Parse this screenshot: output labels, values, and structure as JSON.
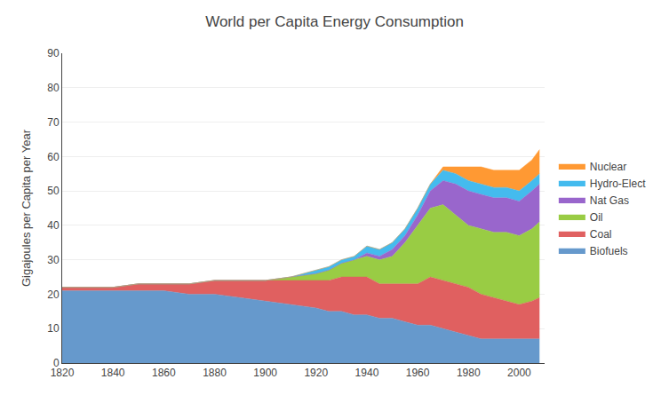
{
  "chart_data": {
    "type": "area",
    "stacked": true,
    "title": "World per Capita Energy Consumption",
    "ylabel": "Gigajoules per Capita per Year",
    "x": [
      1820,
      1830,
      1840,
      1850,
      1860,
      1870,
      1880,
      1890,
      1900,
      1910,
      1920,
      1925,
      1930,
      1935,
      1940,
      1945,
      1950,
      1955,
      1960,
      1965,
      1970,
      1975,
      1980,
      1985,
      1990,
      1995,
      2000,
      2005,
      2008
    ],
    "series": [
      {
        "name": "Biofuels",
        "color": "#6699CC",
        "values": [
          21,
          21,
          21,
          21,
          21,
          20,
          20,
          19,
          18,
          17,
          16,
          15,
          15,
          14,
          14,
          13,
          13,
          12,
          11,
          11,
          10,
          9,
          8,
          7,
          7,
          7,
          7,
          7,
          7
        ]
      },
      {
        "name": "Coal",
        "color": "#E06060",
        "values": [
          1,
          1,
          1,
          2,
          2,
          3,
          4,
          5,
          6,
          7,
          8,
          9,
          10,
          11,
          11,
          10,
          10,
          11,
          12,
          14,
          14,
          14,
          14,
          13,
          12,
          11,
          10,
          11,
          12
        ]
      },
      {
        "name": "Oil",
        "color": "#99CC44",
        "values": [
          0,
          0,
          0,
          0,
          0,
          0,
          0,
          0,
          0,
          1,
          2,
          3,
          4,
          5,
          6,
          7,
          8,
          12,
          17,
          20,
          22,
          20,
          18,
          19,
          19,
          20,
          20,
          21,
          22
        ]
      },
      {
        "name": "Nat Gas",
        "color": "#9966CC",
        "values": [
          0,
          0,
          0,
          0,
          0,
          0,
          0,
          0,
          0,
          0,
          0,
          0,
          0,
          0,
          1,
          1,
          2,
          2,
          3,
          5,
          7,
          9,
          10,
          10,
          10,
          10,
          10,
          11,
          11
        ]
      },
      {
        "name": "Hydro-Elect",
        "color": "#44BBEE",
        "values": [
          0,
          0,
          0,
          0,
          0,
          0,
          0,
          0,
          0,
          0,
          1,
          1,
          1,
          1,
          2,
          2,
          2,
          2,
          2,
          2,
          3,
          3,
          3,
          3,
          3,
          3,
          3,
          3,
          3
        ]
      },
      {
        "name": "Nuclear",
        "color": "#FF9933",
        "values": [
          0,
          0,
          0,
          0,
          0,
          0,
          0,
          0,
          0,
          0,
          0,
          0,
          0,
          0,
          0,
          0,
          0,
          0,
          0,
          0,
          1,
          2,
          4,
          5,
          5,
          5,
          6,
          6,
          7
        ]
      }
    ],
    "xlim": [
      1820,
      2010
    ],
    "xticks": [
      1820,
      1840,
      1860,
      1880,
      1900,
      1920,
      1940,
      1960,
      1980,
      2000
    ],
    "ylim": [
      0,
      90
    ],
    "yticks": [
      0,
      10,
      20,
      30,
      40,
      50,
      60,
      70,
      80,
      90
    ],
    "grid": "y",
    "legend": "right"
  }
}
